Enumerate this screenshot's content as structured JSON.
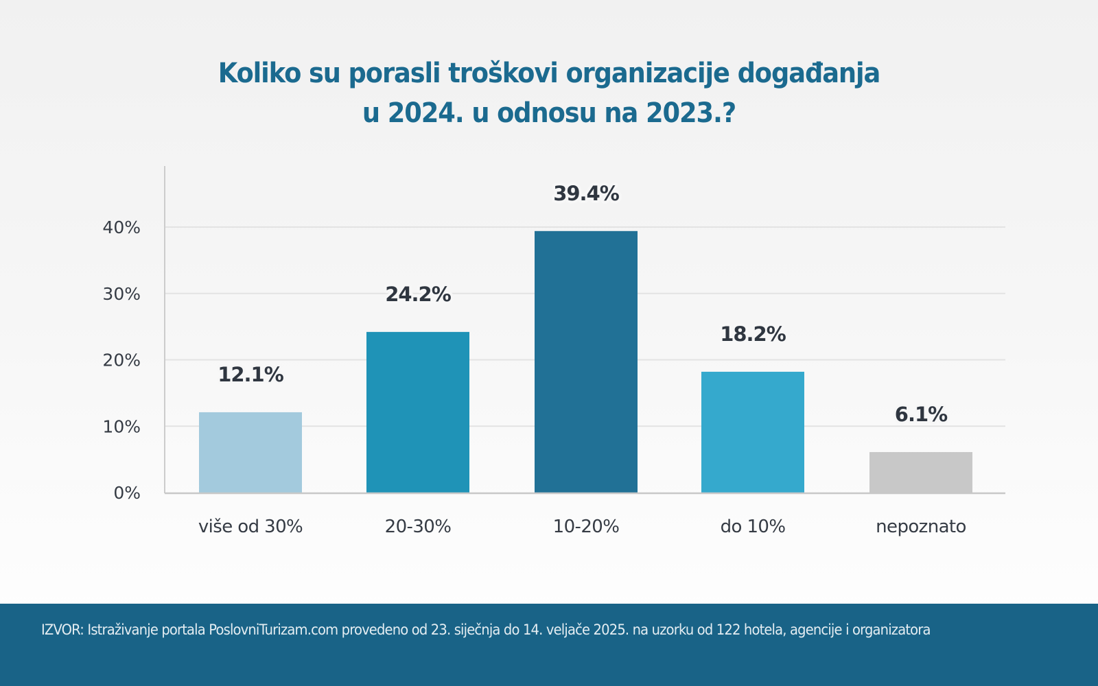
{
  "chart_data": {
    "type": "bar",
    "title": "Koliko su porasli troškovi organizacije događanja u 2024. u odnosu na 2023.?",
    "title_lines": [
      "Koliko su porasli troškovi organizacije događanja",
      "u 2024. u odnosu na 2023.?"
    ],
    "xlabel": "",
    "ylabel": "",
    "categories": [
      "više od 30%",
      "20-30%",
      "10-20%",
      "do 10%",
      "nepoznato"
    ],
    "values": [
      12.1,
      24.2,
      39.4,
      18.2,
      6.1
    ],
    "data_labels": [
      "12.1%",
      "24.2%",
      "39.4%",
      "18.2%",
      "6.1%"
    ],
    "bar_colors": [
      "#a3cadd",
      "#1f93b7",
      "#217196",
      "#35a9cd",
      "#c8c8c8"
    ],
    "ylim": [
      0,
      40
    ],
    "yticks": [
      0,
      10,
      20,
      30,
      40
    ],
    "ytick_labels": [
      "0%",
      "10%",
      "20%",
      "30%",
      "40%"
    ],
    "grid": true,
    "legend": null
  },
  "footer": {
    "source": "IZVOR: Istraživanje portala PoslovniTurizam.com provedeno od 23. siječnja do 14. veljače 2025. na uzorku od 122 hotela, agencije i organizatora"
  },
  "colors": {
    "title": "#1b6a8f",
    "footer_bg": "#196387",
    "label_text": "#2f3640"
  }
}
